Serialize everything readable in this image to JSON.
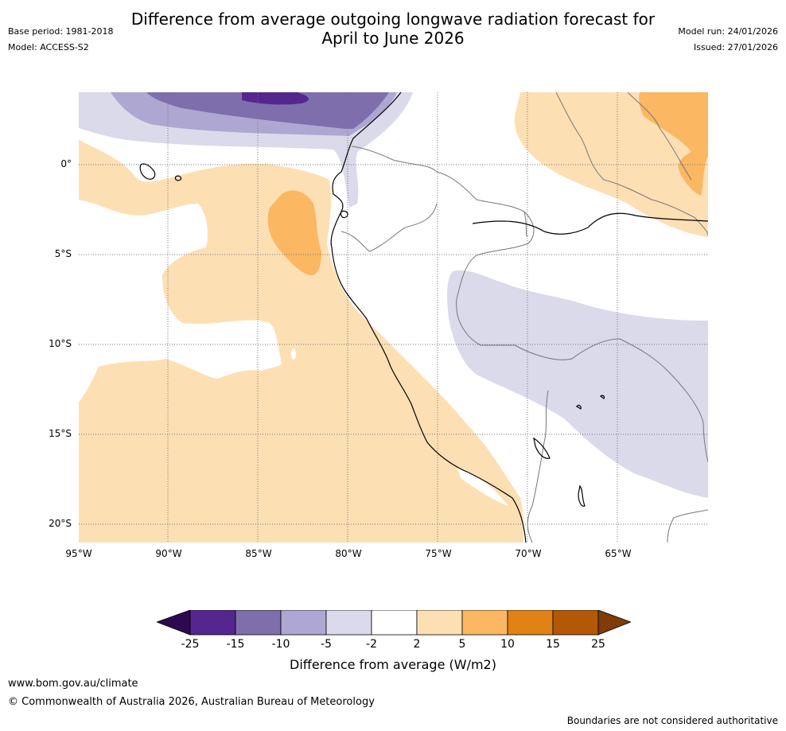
{
  "header": {
    "title_line1": "Difference from average outgoing longwave radiation forecast for",
    "title_line2": "April to June 2026",
    "base_period": "Base period: 1981-2018",
    "model": "Model: ACCESS-S2",
    "model_run": "Model run: 24/01/2026",
    "issued": "Issued: 27/01/2026"
  },
  "map": {
    "lat_labels": [
      "0°",
      "5°S",
      "10°S",
      "15°S",
      "20°S"
    ],
    "lon_labels": [
      "95°W",
      "90°W",
      "85°W",
      "80°W",
      "75°W",
      "70°W",
      "65°W"
    ]
  },
  "colorbar": {
    "ticks": [
      "-25",
      "-15",
      "-10",
      "-5",
      "-2",
      "2",
      "5",
      "10",
      "15",
      "25"
    ],
    "colors": [
      "#2d0a4e",
      "#54278f",
      "#7e6eac",
      "#aea7d1",
      "#dadaeb",
      "#ffffff",
      "#fddfb4",
      "#fbb761",
      "#e08214",
      "#b35806",
      "#7f3b08"
    ],
    "label": "Difference from average (W/m2)"
  },
  "footer": {
    "url": "www.bom.gov.au/climate",
    "copyright": "© Commonwealth of Australia 2026, Australian Bureau of Meteorology",
    "disclaimer": "Boundaries are not considered authoritative"
  }
}
